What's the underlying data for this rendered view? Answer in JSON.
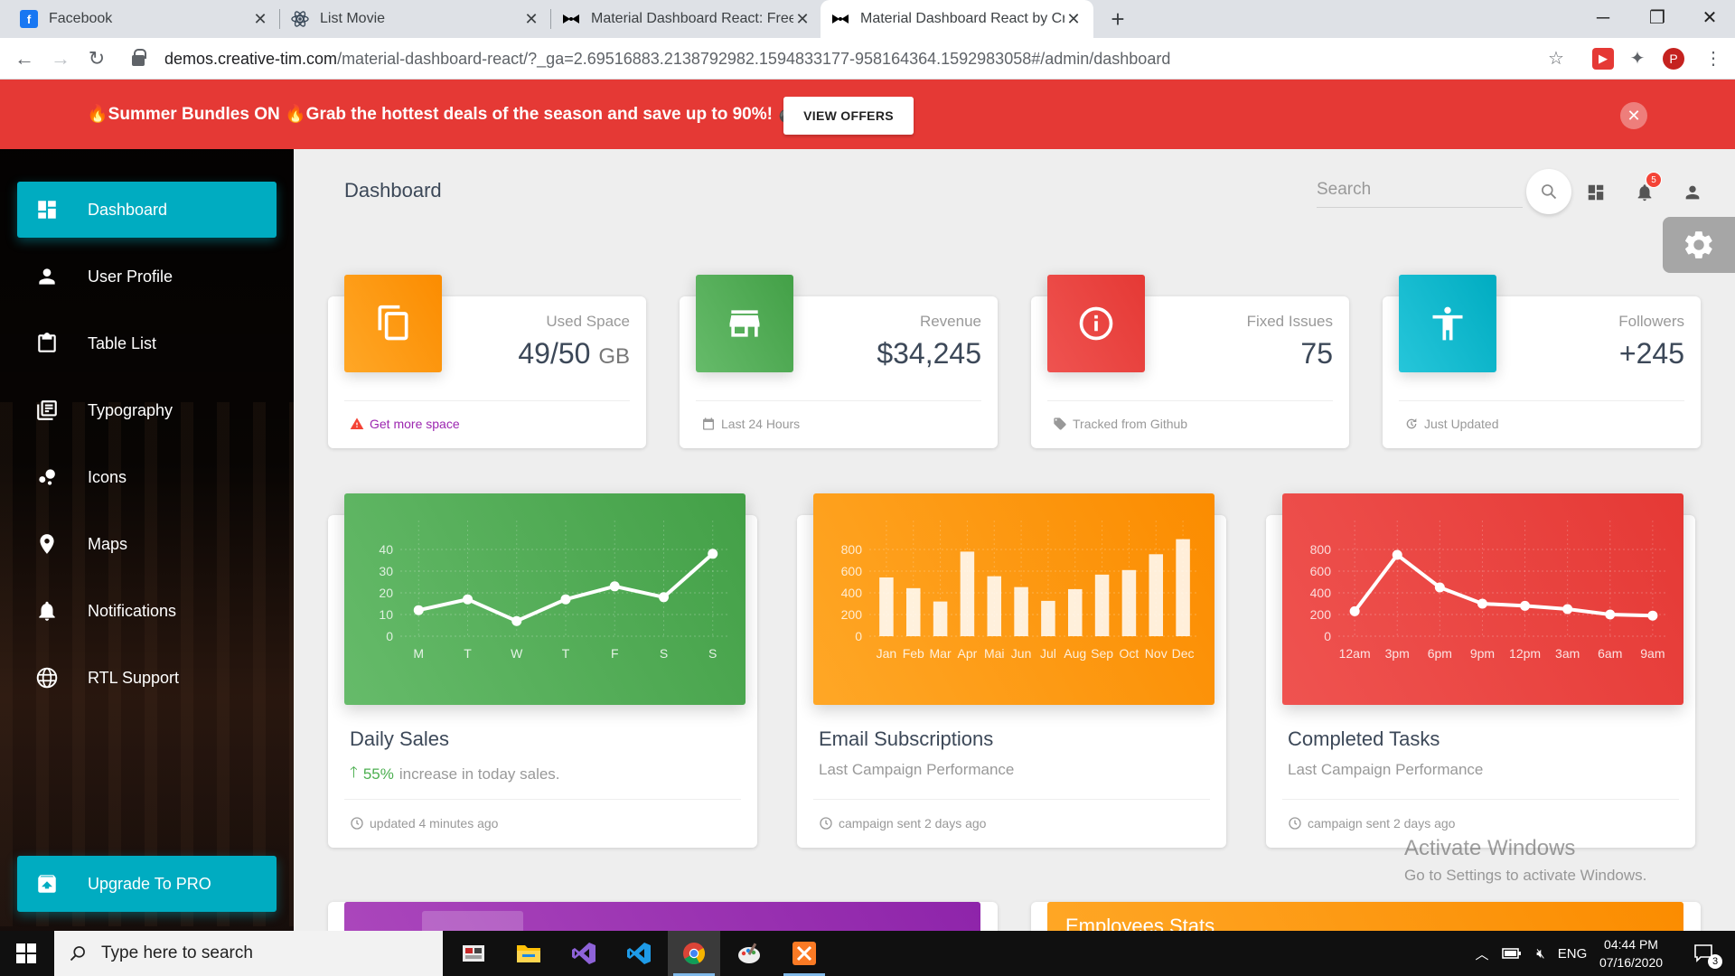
{
  "browser": {
    "tabs": [
      {
        "title": "Facebook",
        "favicon": "facebook-icon",
        "color": "#1877f2"
      },
      {
        "title": "List Movie",
        "favicon": "react-icon",
        "color": "#3b4a5a"
      },
      {
        "title": "Material Dashboard React: Free M",
        "favicon": "creative-tim-icon",
        "color": "#000000"
      },
      {
        "title": "Material Dashboard React by Cre",
        "favicon": "creative-tim-icon",
        "color": "#000000"
      }
    ],
    "url_host": "demos.creative-tim.com",
    "url_path": "/material-dashboard-react/?_ga=2.69516883.2138792982.1594833177-958164364.1592983058#/admin/dashboard",
    "profile_initial": "P"
  },
  "promo": {
    "text_bold": "Summer Bundles ON",
    "text_mid": "Grab the hottest deals of the season and ",
    "text_bold2": "save up to 90%!",
    "button": "VIEW OFFERS"
  },
  "sidebar": {
    "items": [
      {
        "label": "Dashboard",
        "icon": "dashboard-icon"
      },
      {
        "label": "User Profile",
        "icon": "person-icon"
      },
      {
        "label": "Table List",
        "icon": "clipboard-icon"
      },
      {
        "label": "Typography",
        "icon": "library-books-icon"
      },
      {
        "label": "Icons",
        "icon": "bubble-chart-icon"
      },
      {
        "label": "Maps",
        "icon": "location-icon"
      },
      {
        "label": "Notifications",
        "icon": "bell-icon"
      },
      {
        "label": "RTL Support",
        "icon": "language-icon"
      }
    ],
    "upgrade": "Upgrade To PRO"
  },
  "header": {
    "title": "Dashboard",
    "search_placeholder": "Search",
    "notification_count": "5"
  },
  "stats": [
    {
      "label": "Used Space",
      "value": "49/50",
      "unit": "GB",
      "footer": "Get more space",
      "footer_icon": "warning-icon",
      "color": "#ff9800"
    },
    {
      "label": "Revenue",
      "value": "$34,245",
      "unit": "",
      "footer": "Last 24 Hours",
      "footer_icon": "calendar-icon",
      "color": "#4caf50"
    },
    {
      "label": "Fixed Issues",
      "value": "75",
      "unit": "",
      "footer": "Tracked from Github",
      "footer_icon": "tag-icon",
      "color": "#f44336"
    },
    {
      "label": "Followers",
      "value": "+245",
      "unit": "",
      "footer": "Just Updated",
      "footer_icon": "update-icon",
      "color": "#00acc1"
    }
  ],
  "charts": [
    {
      "title": "Daily Sales",
      "sub_pct": "55%",
      "sub_rest": " increase in today sales.",
      "footer": "updated 4 minutes ago"
    },
    {
      "title": "Email Subscriptions",
      "sub": "Last Campaign Performance",
      "footer": "campaign sent 2 days ago"
    },
    {
      "title": "Completed Tasks",
      "sub": "Last Campaign Performance",
      "footer": "campaign sent 2 days ago"
    }
  ],
  "chart_data": [
    {
      "type": "line",
      "categories": [
        "M",
        "T",
        "W",
        "T",
        "F",
        "S",
        "S"
      ],
      "values": [
        12,
        17,
        7,
        17,
        23,
        18,
        38
      ],
      "yticks": [
        0,
        10,
        20,
        30,
        40
      ],
      "ylim": [
        0,
        50
      ]
    },
    {
      "type": "bar",
      "categories": [
        "Jan",
        "Feb",
        "Mar",
        "Apr",
        "Mai",
        "Jun",
        "Jul",
        "Aug",
        "Sep",
        "Oct",
        "Nov",
        "Dec"
      ],
      "values": [
        542,
        443,
        320,
        780,
        553,
        453,
        326,
        434,
        568,
        610,
        756,
        895
      ],
      "yticks": [
        0,
        200,
        400,
        600,
        800
      ],
      "ylim": [
        0,
        1000
      ]
    },
    {
      "type": "line",
      "categories": [
        "12am",
        "3pm",
        "6pm",
        "9pm",
        "12pm",
        "3am",
        "6am",
        "9am"
      ],
      "values": [
        230,
        750,
        450,
        300,
        280,
        250,
        200,
        190
      ],
      "yticks": [
        0,
        200,
        400,
        600,
        800
      ],
      "ylim": [
        0,
        1000
      ]
    }
  ],
  "bottom": {
    "employees_title": "Employees Stats"
  },
  "watermark": {
    "line1": "Activate Windows",
    "line2": "Go to Settings to activate Windows."
  },
  "taskbar": {
    "search_placeholder": "Type here to search",
    "lang": "ENG",
    "time": "04:44 PM",
    "date": "07/16/2020",
    "notif_count": "3"
  }
}
